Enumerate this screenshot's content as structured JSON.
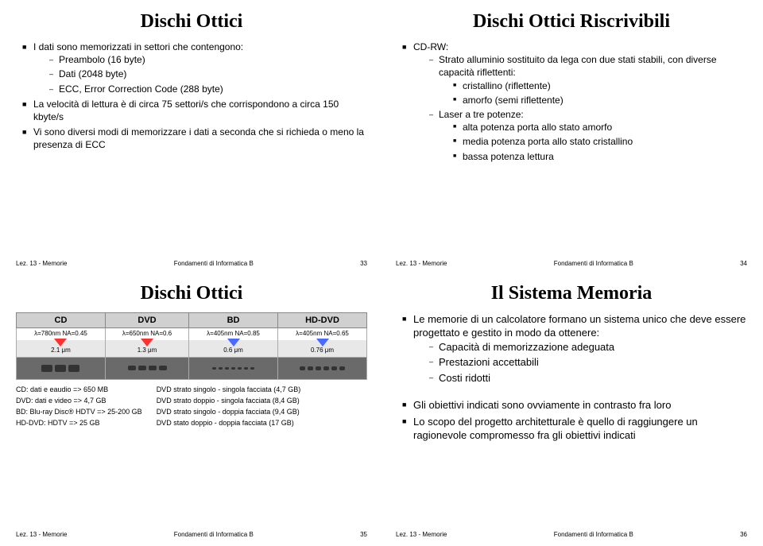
{
  "slide1": {
    "title": "Dischi Ottici",
    "p1": "I dati sono memorizzati in settori che contengono:",
    "p1a": "Preambolo (16 byte)",
    "p1b": "Dati (2048 byte)",
    "p1c": "ECC, Error Correction Code (288 byte)",
    "p2": "La velocità di lettura è di circa 75 settori/s che corrispondono a circa 150 kbyte/s",
    "p3": "Vi sono diversi modi di memorizzare i dati a seconda che si richieda o meno la presenza di ECC",
    "footL": "Lez. 13 - Memorie",
    "footC": "Fondamenti di Informatica B",
    "footR": "33"
  },
  "slide2": {
    "title": "Dischi Ottici Riscrivibili",
    "p1": "CD-RW:",
    "p1a": "Strato alluminio sostituito da lega con due stati stabili, con diverse capacità riflettenti:",
    "p1a1": "cristallino (riflettente)",
    "p1a2": "amorfo (semi riflettente)",
    "p1b": "Laser a tre potenze:",
    "p1b1": "alta potenza porta allo stato amorfo",
    "p1b2": "media potenza porta allo stato cristallino",
    "p1b3": "bassa potenza lettura",
    "footL": "Lez. 13 - Memorie",
    "footC": "Fondamenti di Informatica B",
    "footR": "34"
  },
  "slide3": {
    "title": "Dischi Ottici",
    "table": {
      "headers": [
        "CD",
        "DVD",
        "BD",
        "HD-DVD"
      ],
      "specs": [
        "λ=780nm NA=0.45",
        "λ=650nm NA=0.6",
        "λ=405nm NA=0.85",
        "λ=405nm NA=0.65"
      ],
      "spot": [
        "2.1 μm",
        "1.3 μm",
        "0.6 μm",
        "0.76 μm"
      ],
      "laser_colors": [
        "#ff3030",
        "#ff3030",
        "#4a6aff",
        "#4a6aff"
      ],
      "pit_widths": [
        14,
        10,
        5,
        7
      ]
    },
    "leftcol": {
      "l1": "CD: dati e eaudio => 650 MB",
      "l2": "DVD: dati e video => 4,7 GB",
      "l3": "BD: Blu-ray Disc® HDTV => 25-200 GB",
      "l4": "HD-DVD: HDTV => 25 GB"
    },
    "rightcol": {
      "r1": "DVD strato singolo - singola facciata (4,7 GB)",
      "r2": "DVD strato doppio - singola facciata (8,4 GB)",
      "r3": "DVD strato singolo - doppia facciata (9,4 GB)",
      "r4": "DVD stato doppio - doppia facciata (17 GB)"
    },
    "footL": "Lez. 13 - Memorie",
    "footC": "Fondamenti di Informatica B",
    "footR": "35"
  },
  "slide4": {
    "title": "Il Sistema Memoria",
    "p1": "Le memorie di un calcolatore formano un sistema unico che deve essere progettato e gestito in modo da ottenere:",
    "p1a": "Capacità di memorizzazione adeguata",
    "p1b": "Prestazioni accettabili",
    "p1c": "Costi ridotti",
    "p2": "Gli obiettivi indicati sono ovviamente in contrasto fra loro",
    "p3": "Lo scopo del progetto architetturale è quello di raggiungere un ragionevole compromesso fra gli obiettivi indicati",
    "footL": "Lez. 13 - Memorie",
    "footC": "Fondamenti di Informatica B",
    "footR": "36"
  }
}
